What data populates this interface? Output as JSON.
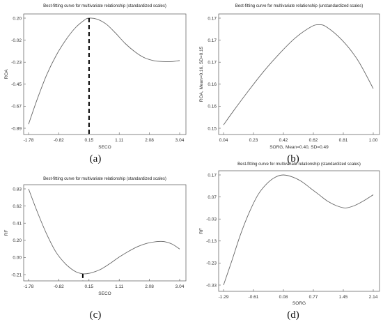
{
  "chart_data": [
    {
      "type": "line",
      "caption": "(a)",
      "title": "Best-fitting curve for multivariate relationship (standardized scales)",
      "xlabel": "SECO",
      "ylabel": "ROA",
      "xticks": [
        "-1.78",
        "-0.82",
        "0.15",
        "1.11",
        "2.08",
        "3.04"
      ],
      "yticks": [
        "-0.89",
        "-0.67",
        "-0.45",
        "-0.23",
        "-0.02",
        "0.20"
      ],
      "xlim": [
        -1.78,
        3.04
      ],
      "ylim": [
        -0.89,
        0.2
      ],
      "vline_x": 0.15,
      "series": [
        {
          "x": [
            -1.78,
            -1.5,
            -1.2,
            -0.9,
            -0.6,
            -0.3,
            0.0,
            0.15,
            0.4,
            0.7,
            1.0,
            1.3,
            1.6,
            1.9,
            2.2,
            2.5,
            2.8,
            3.04
          ],
          "y": [
            -0.85,
            -0.6,
            -0.36,
            -0.17,
            -0.02,
            0.1,
            0.18,
            0.2,
            0.19,
            0.14,
            0.05,
            -0.05,
            -0.13,
            -0.19,
            -0.22,
            -0.23,
            -0.23,
            -0.22
          ]
        }
      ]
    },
    {
      "type": "line",
      "caption": "(b)",
      "title": "Best-fitting curve for multivariate relationship (unstandardized scales)",
      "xlabel": "SORG, Mean=0.40, SD=0.49",
      "ylabel": "ROA, Mean=0.16, SD=0.15",
      "xticks": [
        "0.04",
        "0.23",
        "0.42",
        "0.62",
        "0.81",
        "1.00"
      ],
      "yticks": [
        "0.15",
        "0.16",
        "0.16",
        "0.17",
        "0.17",
        "0.17"
      ],
      "xlim": [
        0.04,
        1.0
      ],
      "ylim": [
        0.0,
        5.0
      ],
      "series": [
        {
          "x": [
            0.04,
            0.1,
            0.2,
            0.3,
            0.4,
            0.5,
            0.6,
            0.65,
            0.7,
            0.8,
            0.9,
            1.0
          ],
          "y": [
            0.15,
            0.75,
            1.7,
            2.6,
            3.4,
            4.1,
            4.6,
            4.7,
            4.6,
            4.0,
            3.1,
            1.8
          ]
        }
      ]
    },
    {
      "type": "line",
      "caption": "(c)",
      "title": "Best-fitting curve for multivariate relationship (standardized scales)",
      "xlabel": "SECO",
      "ylabel": "RF",
      "xticks": [
        "-1.78",
        "-0.82",
        "0.15",
        "1.11",
        "2.08",
        "3.04"
      ],
      "yticks": [
        "-0.21",
        "0.00",
        "0.20",
        "0.41",
        "0.62",
        "0.83"
      ],
      "xlim": [
        -1.78,
        3.04
      ],
      "ylim": [
        -0.21,
        0.83
      ],
      "vline_x": -0.05,
      "series": [
        {
          "x": [
            -1.78,
            -1.5,
            -1.2,
            -0.9,
            -0.6,
            -0.3,
            -0.05,
            0.2,
            0.5,
            0.8,
            1.1,
            1.4,
            1.7,
            2.0,
            2.3,
            2.55,
            2.8,
            3.04
          ],
          "y": [
            0.83,
            0.55,
            0.28,
            0.06,
            -0.08,
            -0.17,
            -0.2,
            -0.19,
            -0.15,
            -0.08,
            0.0,
            0.07,
            0.13,
            0.17,
            0.19,
            0.19,
            0.16,
            0.1
          ]
        }
      ]
    },
    {
      "type": "line",
      "caption": "(d)",
      "title": "Best-fitting curve for multivariate relationship (standardized scales)",
      "xlabel": "SORG",
      "ylabel": "RF",
      "xticks": [
        "-1.29",
        "-0.61",
        "0.08",
        "0.77",
        "1.45",
        "2.14"
      ],
      "yticks": [
        "-0.33",
        "-0.23",
        "-0.13",
        "-0.03",
        "0.07",
        "0.17"
      ],
      "xlim": [
        -1.29,
        2.14
      ],
      "ylim": [
        -0.33,
        0.17
      ],
      "series": [
        {
          "x": [
            -1.29,
            -1.1,
            -0.9,
            -0.7,
            -0.5,
            -0.3,
            -0.1,
            0.08,
            0.3,
            0.5,
            0.7,
            0.9,
            1.1,
            1.3,
            1.5,
            1.7,
            1.9,
            2.14
          ],
          "y": [
            -0.33,
            -0.22,
            -0.1,
            0.0,
            0.08,
            0.13,
            0.16,
            0.17,
            0.16,
            0.14,
            0.11,
            0.08,
            0.05,
            0.03,
            0.02,
            0.03,
            0.05,
            0.08
          ]
        }
      ]
    }
  ]
}
